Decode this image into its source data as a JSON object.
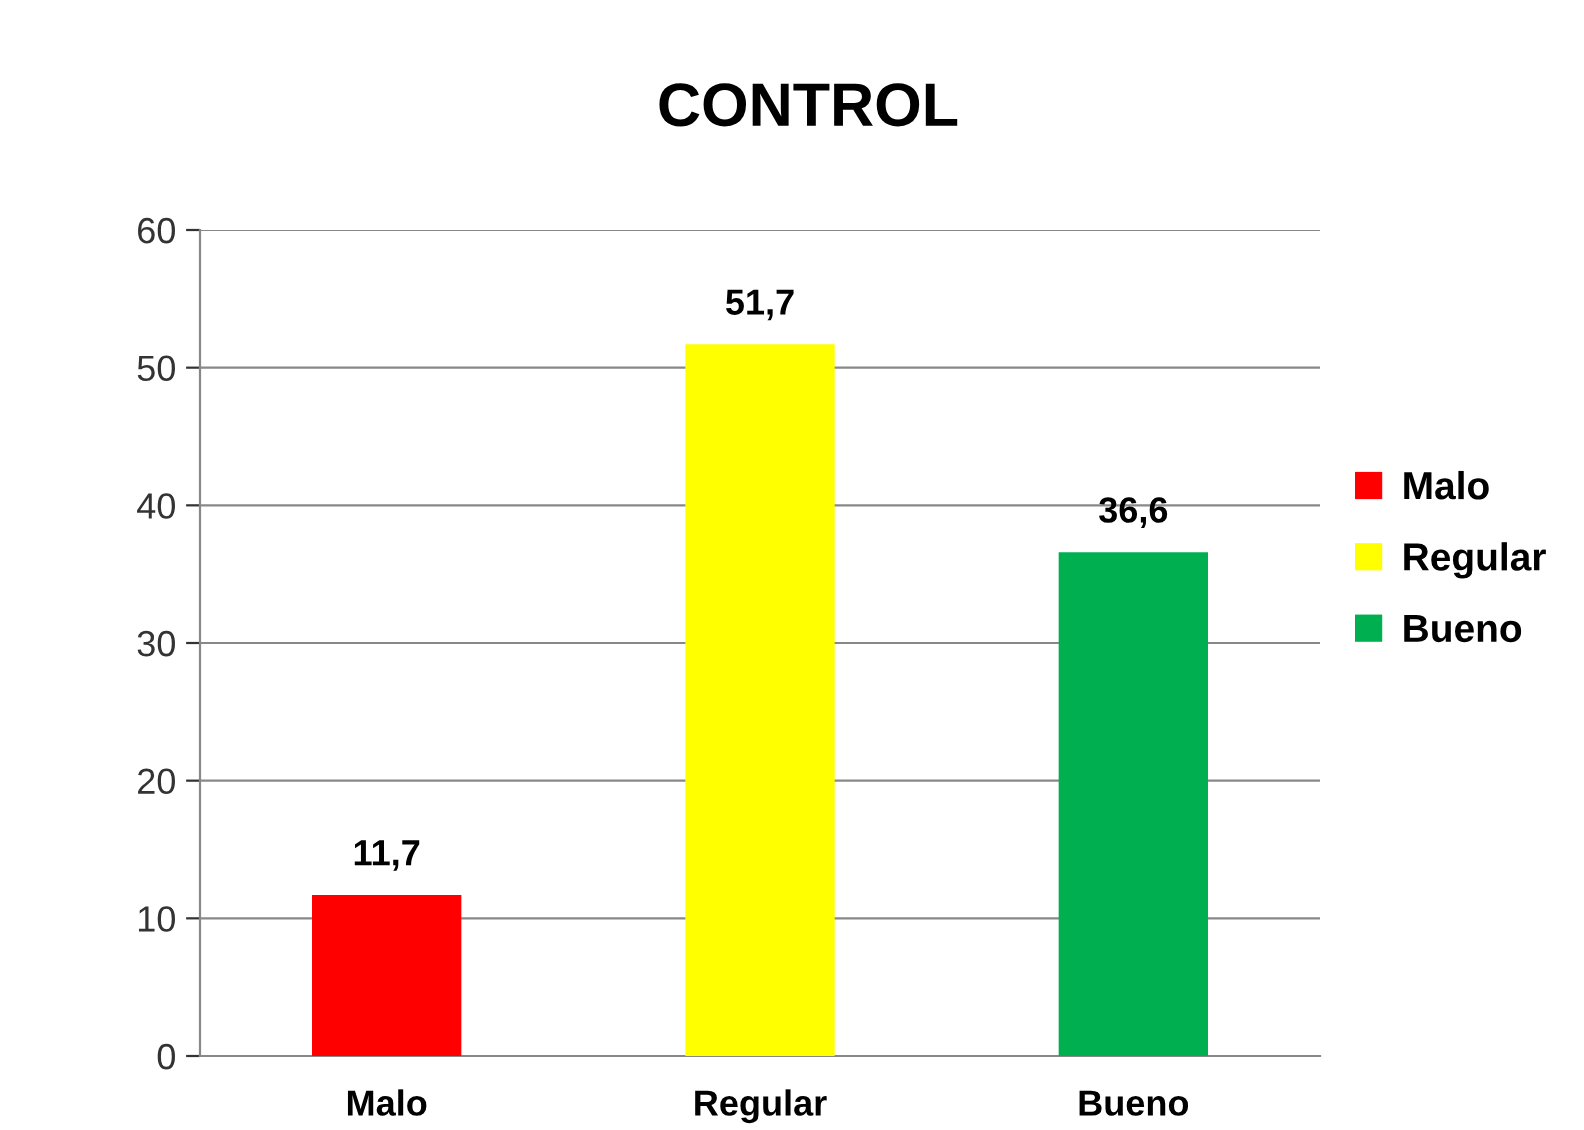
{
  "chart_data": {
    "type": "bar",
    "title": "CONTROL",
    "categories": [
      "Malo",
      "Regular",
      "Bueno"
    ],
    "stacked": true,
    "series": [
      {
        "name": "Malo",
        "color": "#ff0000",
        "values": [
          11.7,
          null,
          null
        ],
        "value_labels": [
          "11,7",
          null,
          null
        ]
      },
      {
        "name": "Regular",
        "color": "#ffff00",
        "values": [
          null,
          51.7,
          null
        ],
        "value_labels": [
          null,
          "51,7",
          null
        ]
      },
      {
        "name": "Bueno",
        "color": "#00b050",
        "values": [
          null,
          null,
          36.6
        ],
        "value_labels": [
          null,
          null,
          "36,6"
        ]
      }
    ],
    "ylim": [
      0,
      60
    ],
    "yticks": [
      0,
      10,
      20,
      30,
      40,
      50,
      60
    ],
    "grid": "y",
    "legend": "right"
  }
}
